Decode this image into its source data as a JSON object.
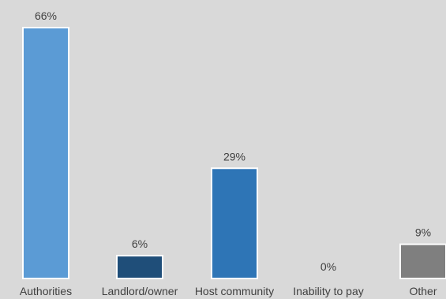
{
  "chart_data": {
    "type": "bar",
    "categories": [
      "Authorities",
      "Landlord/owner",
      "Host community",
      "Inability to pay",
      "Other"
    ],
    "values": [
      66,
      6,
      29,
      0,
      9
    ],
    "value_labels": [
      "66%",
      "6%",
      "29%",
      "0%",
      "9%"
    ],
    "colors": [
      "#5b9bd5",
      "#1f4e79",
      "#2e75b6",
      "#cfcfcf",
      "#7f7f7f"
    ],
    "ylim": [
      0,
      70
    ],
    "grid": false,
    "title": "",
    "xlabel": "",
    "ylabel": ""
  }
}
